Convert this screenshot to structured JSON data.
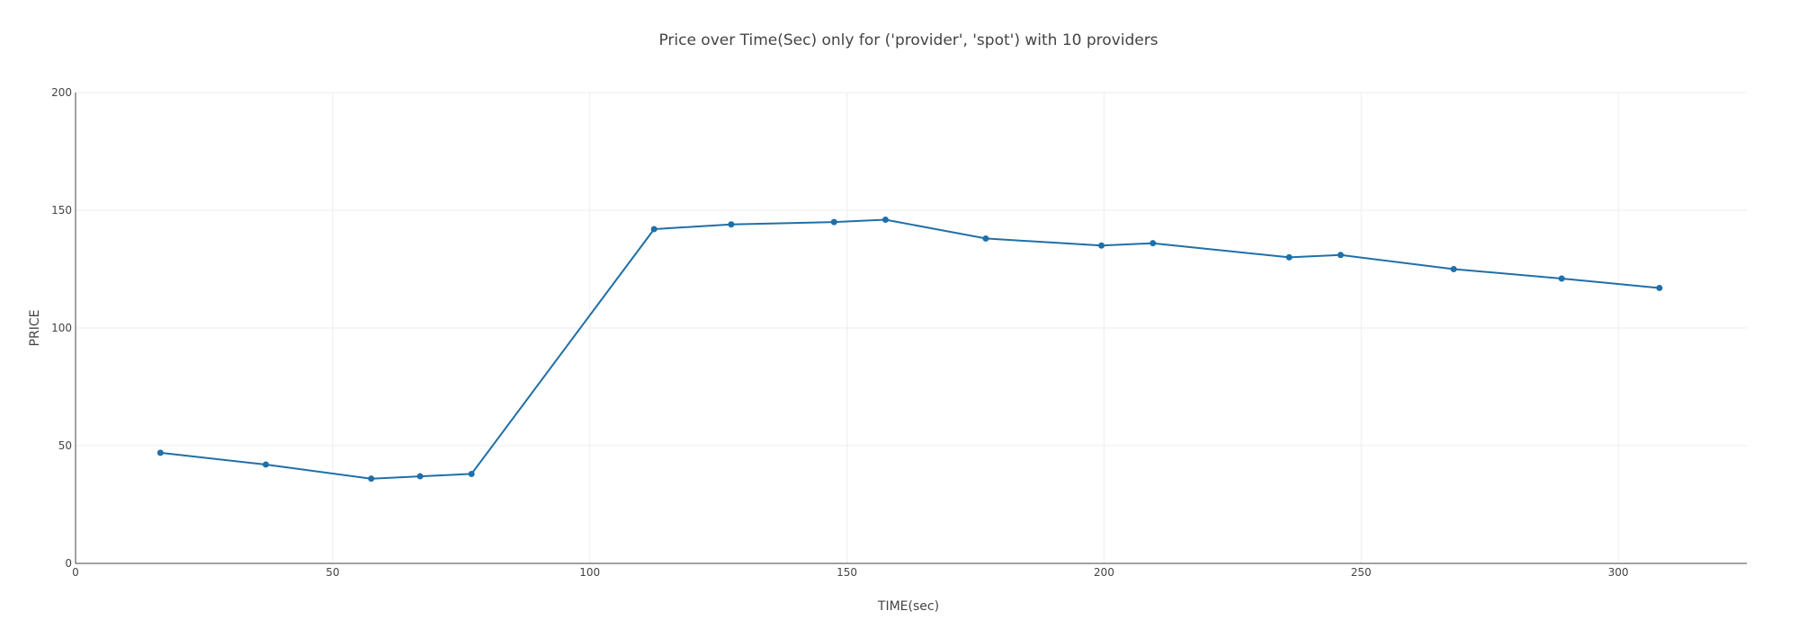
{
  "chart_data": {
    "type": "line",
    "title": "Price over Time(Sec) only for ('provider', 'spot') with 10 providers",
    "xlabel": "TIME(sec)",
    "ylabel": "PRICE",
    "xlim": [
      0,
      325
    ],
    "ylim": [
      0,
      200
    ],
    "xticks": [
      0,
      50,
      100,
      150,
      200,
      250,
      300
    ],
    "yticks": [
      0,
      50,
      100,
      150,
      200
    ],
    "grid": true,
    "color": "#1f6fa8",
    "series": [
      {
        "x": [
          16.5,
          37,
          57.5,
          67,
          77,
          112.5,
          127.5,
          147.5,
          157.5,
          177,
          199.5,
          209.5,
          236,
          246,
          268,
          289,
          308
        ],
        "y": [
          47,
          42,
          36,
          37,
          38,
          142,
          144,
          145,
          146,
          138,
          135,
          136,
          130,
          131,
          125,
          121,
          117
        ]
      }
    ]
  }
}
